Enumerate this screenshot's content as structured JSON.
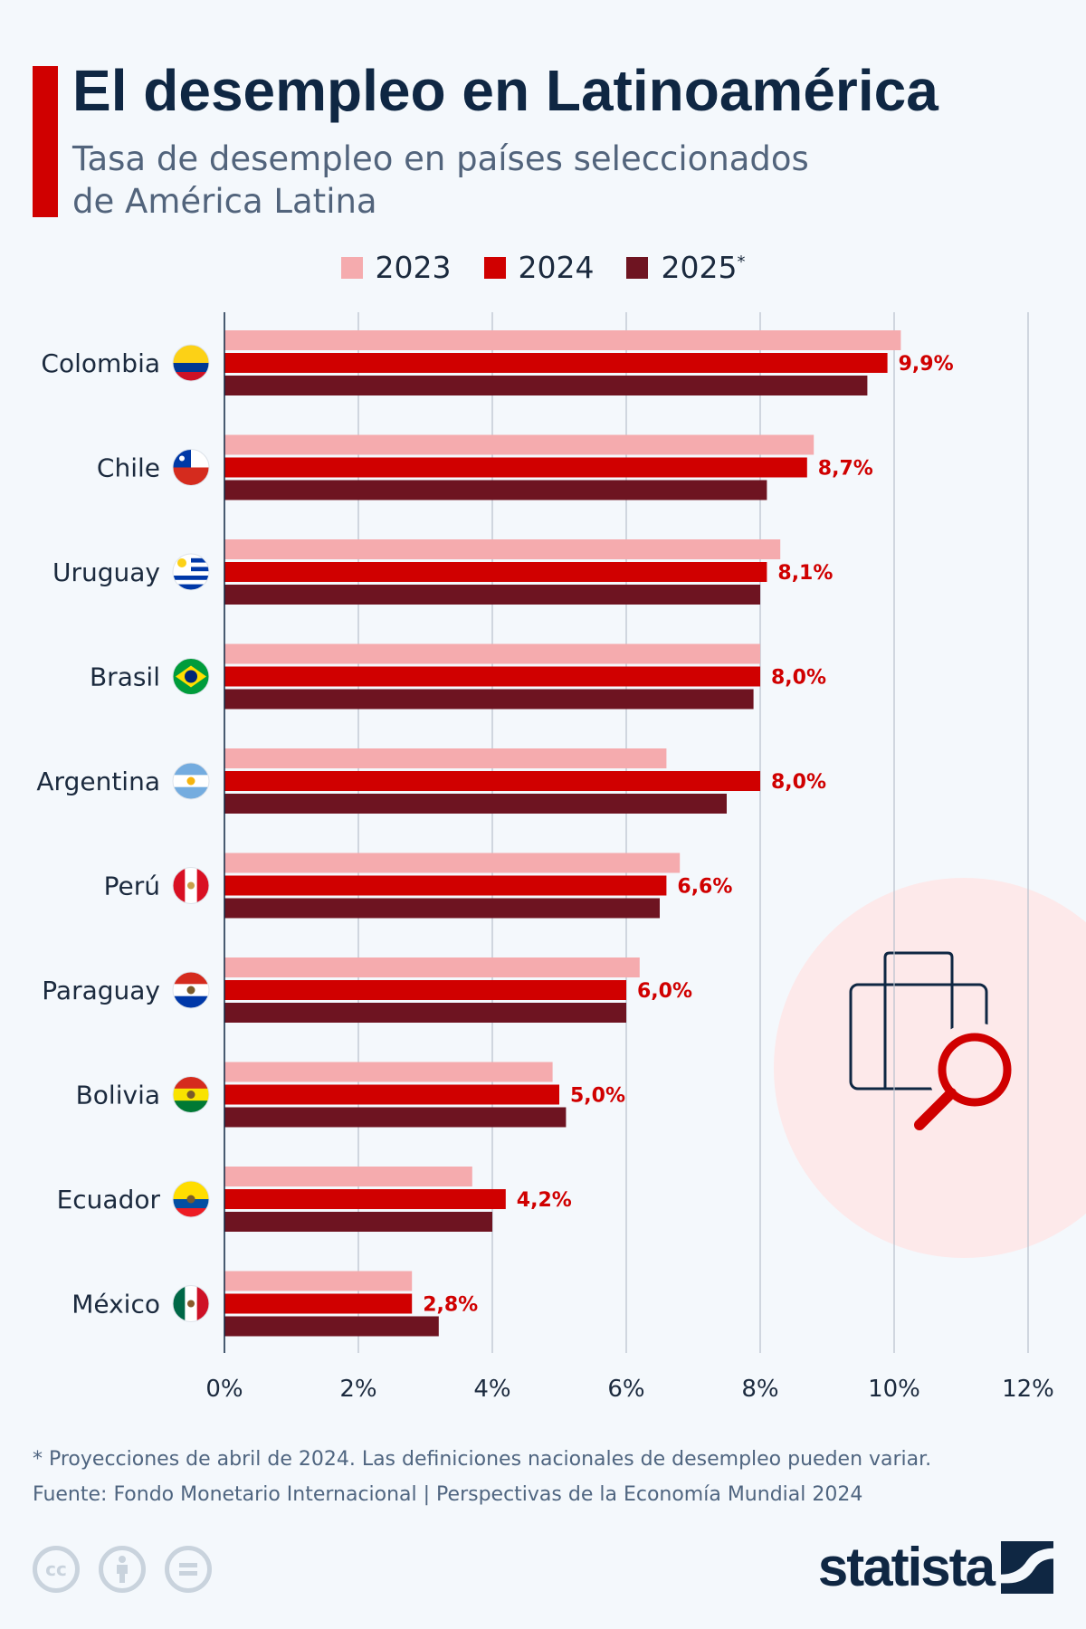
{
  "header": {
    "title": "El desempleo en Latinoamérica",
    "subtitle_line1": "Tasa de desempleo en países seleccionados",
    "subtitle_line2": "de América Latina"
  },
  "legend": [
    {
      "label": "2023",
      "sup": "",
      "color": "#f5abae"
    },
    {
      "label": "2024",
      "sup": "",
      "color": "#d00000"
    },
    {
      "label": "2025",
      "sup": "*",
      "color": "#6e1421"
    }
  ],
  "chart_data": {
    "type": "bar",
    "orientation": "horizontal",
    "categories": [
      "Colombia",
      "Chile",
      "Uruguay",
      "Brasil",
      "Argentina",
      "Perú",
      "Paraguay",
      "Bolivia",
      "Ecuador",
      "México"
    ],
    "flags": [
      "flag-colombia",
      "flag-chile",
      "flag-uruguay",
      "flag-brazil",
      "flag-argentina",
      "flag-peru",
      "flag-paraguay",
      "flag-bolivia",
      "flag-ecuador",
      "flag-mexico"
    ],
    "series": [
      {
        "name": "2023",
        "values": [
          10.1,
          8.8,
          8.3,
          8.0,
          6.6,
          6.8,
          6.2,
          4.9,
          3.7,
          2.8
        ]
      },
      {
        "name": "2024",
        "values": [
          9.9,
          8.7,
          8.1,
          8.0,
          8.0,
          6.6,
          6.0,
          5.0,
          4.2,
          2.8
        ]
      },
      {
        "name": "2025*",
        "values": [
          9.6,
          8.1,
          8.0,
          7.9,
          7.5,
          6.5,
          6.0,
          5.1,
          4.0,
          3.2
        ]
      }
    ],
    "data_labels": [
      "9,9%",
      "8,7%",
      "8,1%",
      "8,0%",
      "8,0%",
      "6,6%",
      "6,0%",
      "5,0%",
      "4,2%",
      "2,8%"
    ],
    "labeled_series": "2024",
    "xlim": [
      0,
      12
    ],
    "xticks": [
      0,
      2,
      4,
      6,
      8,
      10,
      12
    ],
    "xtick_labels": [
      "0%",
      "2%",
      "4%",
      "6%",
      "8%",
      "10%",
      "12%"
    ],
    "grid": true,
    "legend_position": "top"
  },
  "footer": {
    "note": "* Proyecciones de abril de 2024. Las definiciones nacionales de desempleo pueden variar.",
    "source": "Fuente: Fondo Monetario Internacional | Perspectivas de la Economía Mundial 2024",
    "license_icons": [
      "cc-icon",
      "attribution-icon",
      "no-derivatives-icon"
    ],
    "brand": "statista"
  },
  "decoration": {
    "icon": "briefcase-search-icon"
  }
}
